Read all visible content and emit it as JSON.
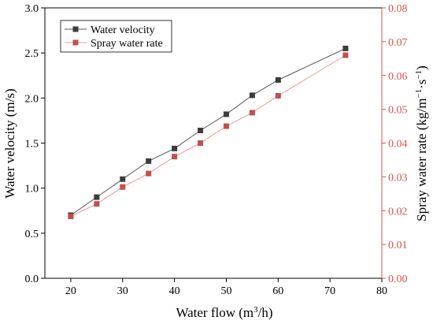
{
  "chart_data": {
    "type": "line",
    "title": "",
    "xlabel": {
      "base": "Water flow (m",
      "sup": "3",
      "tail": "/h)"
    },
    "ylabel_left": "Water velocity (m/s)",
    "ylabel_right": {
      "pre": "Spray water rate (kg/m",
      "sup1": "−1",
      "mid": "·s",
      "sup2": "−1",
      "post": ")"
    },
    "xlim": [
      15,
      80
    ],
    "ylim_left": [
      0,
      3.0
    ],
    "ylim_right": [
      0,
      0.08
    ],
    "x_ticks": [
      20,
      30,
      40,
      50,
      60,
      70,
      80
    ],
    "y_left_ticks": [
      "0.0",
      "0.5",
      "1.0",
      "1.5",
      "2.0",
      "2.5",
      "3.0"
    ],
    "y_right_ticks": [
      "0.00",
      "0.01",
      "0.02",
      "0.03",
      "0.04",
      "0.05",
      "0.06",
      "0.07",
      "0.08"
    ],
    "grid": false,
    "legend_position": "top-left",
    "x": [
      20,
      25,
      30,
      35,
      40,
      45,
      50,
      55,
      60,
      73
    ],
    "series": [
      {
        "name": "Water velocity",
        "axis": "left",
        "marker": "square",
        "color": "#3c3c3c",
        "values": [
          0.7,
          0.9,
          1.1,
          1.3,
          1.44,
          1.64,
          1.82,
          2.03,
          2.2,
          2.55
        ]
      },
      {
        "name": "Spray water rate",
        "axis": "right",
        "marker": "square",
        "color": "#c0504d",
        "values": [
          0.0183,
          0.022,
          0.027,
          0.031,
          0.036,
          0.04,
          0.045,
          0.049,
          0.054,
          0.066
        ]
      }
    ],
    "colors": {
      "left_axis": "#000000",
      "right_axis": "#d9534f",
      "line_dark": "#555555",
      "line_red": "#e89a98"
    }
  }
}
